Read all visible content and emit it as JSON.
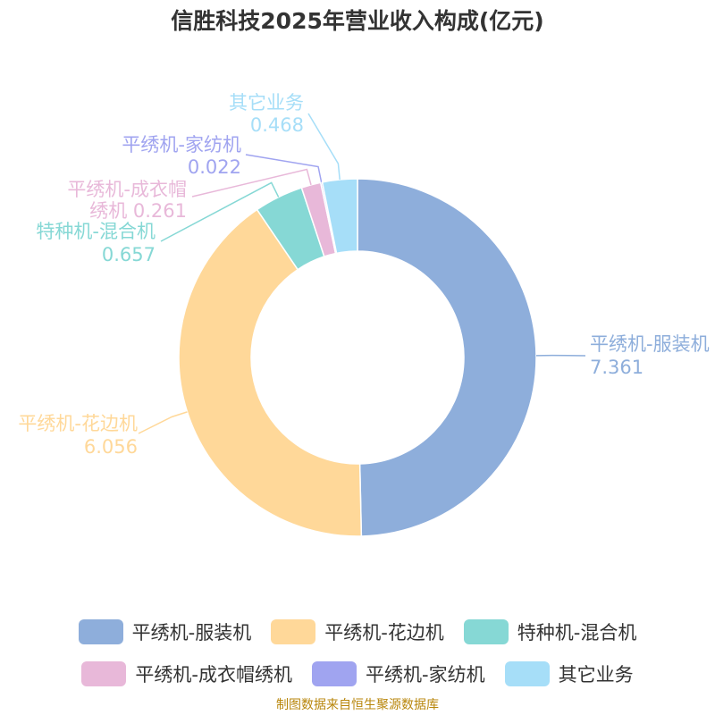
{
  "chart_data": {
    "type": "pie",
    "title": "信胜科技2025年营业收入构成(亿元)",
    "unit": "亿元",
    "slices": [
      {
        "name": "平绣机-服装机",
        "value": 7.361,
        "color": "#8eaedb"
      },
      {
        "name": "平绣机-花边机",
        "value": 6.056,
        "color": "#ffd899"
      },
      {
        "name": "特种机-混合机",
        "value": 0.657,
        "color": "#86d8d5"
      },
      {
        "name": "平绣机-成衣帽绣机",
        "value": 0.261,
        "color": "#e8b8d9"
      },
      {
        "name": "平绣机-家纺机",
        "value": 0.022,
        "color": "#a0a4f0"
      },
      {
        "name": "其它业务",
        "value": 0.468,
        "color": "#a6def8"
      }
    ],
    "legend_position": "bottom"
  },
  "source": "制图数据来自恒生聚源数据库"
}
